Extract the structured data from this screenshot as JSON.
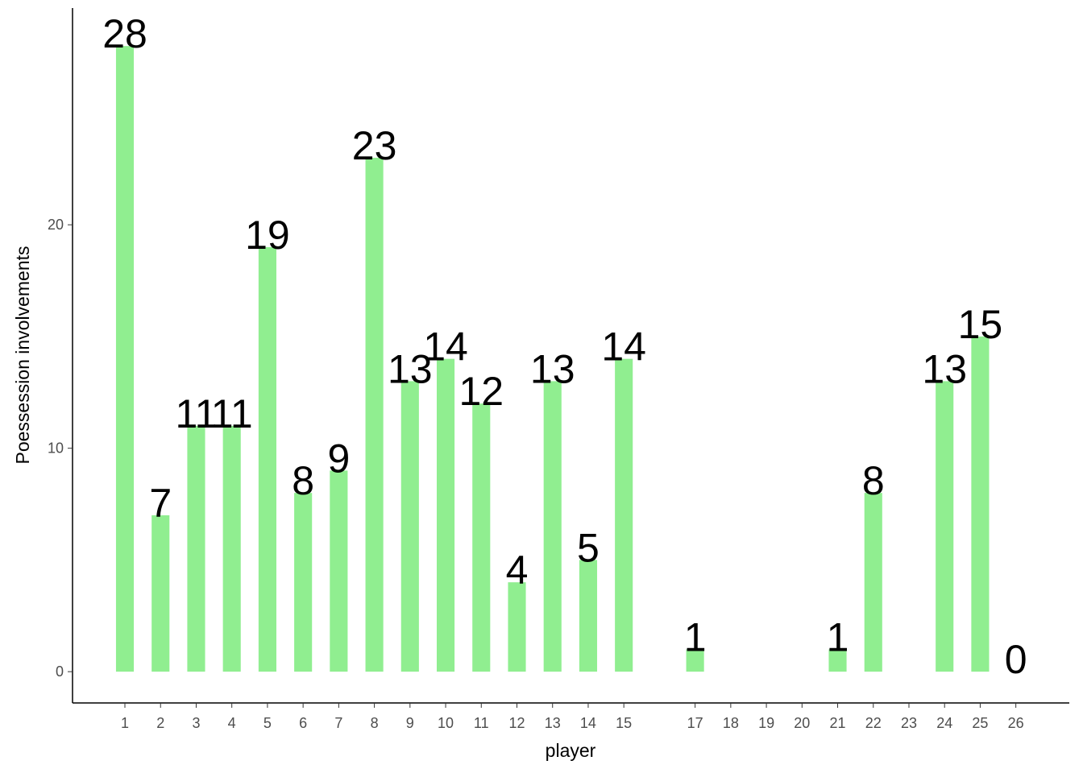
{
  "chart_data": {
    "type": "bar",
    "x_label": "player",
    "y_label": "Poessession involvements",
    "x": [
      1,
      2,
      3,
      4,
      5,
      6,
      7,
      8,
      9,
      10,
      11,
      12,
      13,
      14,
      15,
      17,
      21,
      22,
      24,
      25,
      26
    ],
    "values": [
      28,
      7,
      11,
      11,
      19,
      8,
      9,
      23,
      13,
      14,
      12,
      4,
      13,
      5,
      14,
      1,
      1,
      8,
      13,
      15,
      0
    ],
    "color": "#90ee90",
    "xlim": [
      -0.47,
      27.5
    ],
    "xticks": [
      1,
      2,
      3,
      4,
      5,
      6,
      7,
      8,
      9,
      10,
      11,
      12,
      13,
      14,
      15,
      17,
      18,
      19,
      20,
      21,
      22,
      23,
      24,
      25,
      26
    ],
    "ylim": [
      -1.4,
      29.7
    ],
    "yticks": [
      0,
      10,
      20
    ],
    "grid": false
  }
}
